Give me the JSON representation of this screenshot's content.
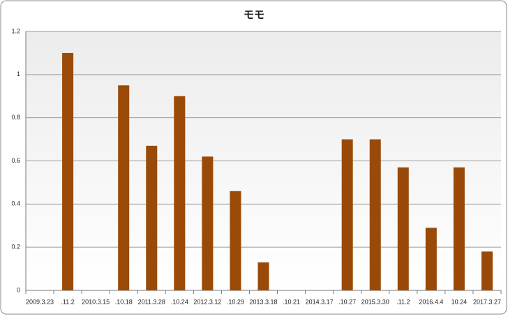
{
  "chart_data": {
    "type": "bar",
    "title": "モモ",
    "categories": [
      "2009.3.23",
      ".11.2",
      "2010.3.15",
      ".10.18",
      "2011.3.28",
      ".10.24",
      "2012.3.12",
      ".10.29",
      "2013.3.18",
      ".10.21",
      "2014.3.17",
      ".10.27",
      "2015.3.30",
      ".11.2",
      "2016.4.4",
      "10.24",
      "2017.3.27"
    ],
    "values": [
      0,
      1.1,
      0,
      0.95,
      0.67,
      0.9,
      0.62,
      0.46,
      0.13,
      0,
      0,
      0.7,
      0.7,
      0.57,
      0.29,
      0.57,
      0.18
    ],
    "color": "#9a4a08",
    "ylim": [
      0,
      1.2
    ],
    "yticks": [
      0,
      0.2,
      0.4,
      0.6,
      0.8,
      1,
      1.2
    ],
    "grid": true
  }
}
